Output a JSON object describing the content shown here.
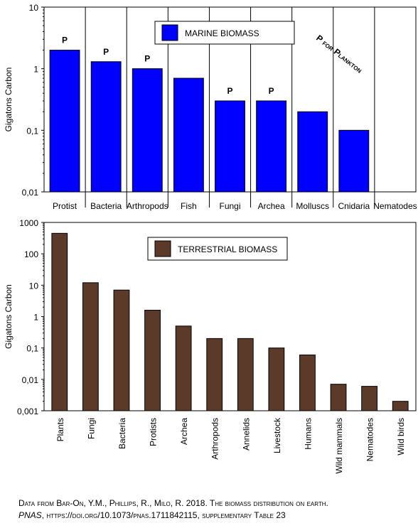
{
  "chart_data": [
    {
      "type": "bar",
      "log_scale": true,
      "ylabel": "Gigatons Carbon",
      "categories": [
        "Protist",
        "Bacteria",
        "Arthropods",
        "Fish",
        "Fungi",
        "Archea",
        "Molluscs",
        "Cnidaria",
        "Nematodes"
      ],
      "series": [
        {
          "name": "MARINE BIOMASS",
          "color": "#0000ff",
          "values": [
            2,
            1.3,
            1,
            0.7,
            0.3,
            0.3,
            0.2,
            0.1,
            null
          ]
        }
      ],
      "annotations": [
        "P",
        "P",
        "P",
        null,
        "P",
        "P",
        null,
        null,
        null
      ],
      "note": "P for Plankton",
      "ylim": [
        0.01,
        10
      ],
      "yticks": [
        {
          "value": 0.01,
          "label": "0,01"
        },
        {
          "value": 0.1,
          "label": "0,1"
        },
        1,
        10
      ],
      "separators": true,
      "rotate_labels": false
    },
    {
      "type": "bar",
      "log_scale": true,
      "ylabel": "Gigatons Carbon",
      "categories": [
        "Plants",
        "Fungi",
        "Bacteria",
        "Protists",
        "Archea",
        "Arthropods",
        "Annelids",
        "Livestock",
        "Humans",
        "Wild mammals",
        "Nematodes",
        "Wild birds"
      ],
      "series": [
        {
          "name": "TERRESTRIAL BIOMASS",
          "color": "#5b3a29",
          "values": [
            450,
            12,
            7,
            1.6,
            0.5,
            0.2,
            0.2,
            0.1,
            0.06,
            0.007,
            0.006,
            0.002
          ]
        }
      ],
      "ylim": [
        0.001,
        1000
      ],
      "yticks": [
        {
          "value": 0.001,
          "label": "0,001"
        },
        {
          "value": 0.01,
          "label": "0,01"
        },
        {
          "value": 0.1,
          "label": "0,1"
        },
        1,
        10,
        100,
        1000
      ],
      "separators": false,
      "rotate_labels": true
    }
  ],
  "source": {
    "line1": "Data from Bar-On, Y.M., Phillips, R., Milo, R. 2018. The biomass distribution on earth.",
    "journal": "PNAS",
    "line2": ", https://doi.org/10.1073/pnas.1711842115, supplementary Table 23"
  }
}
